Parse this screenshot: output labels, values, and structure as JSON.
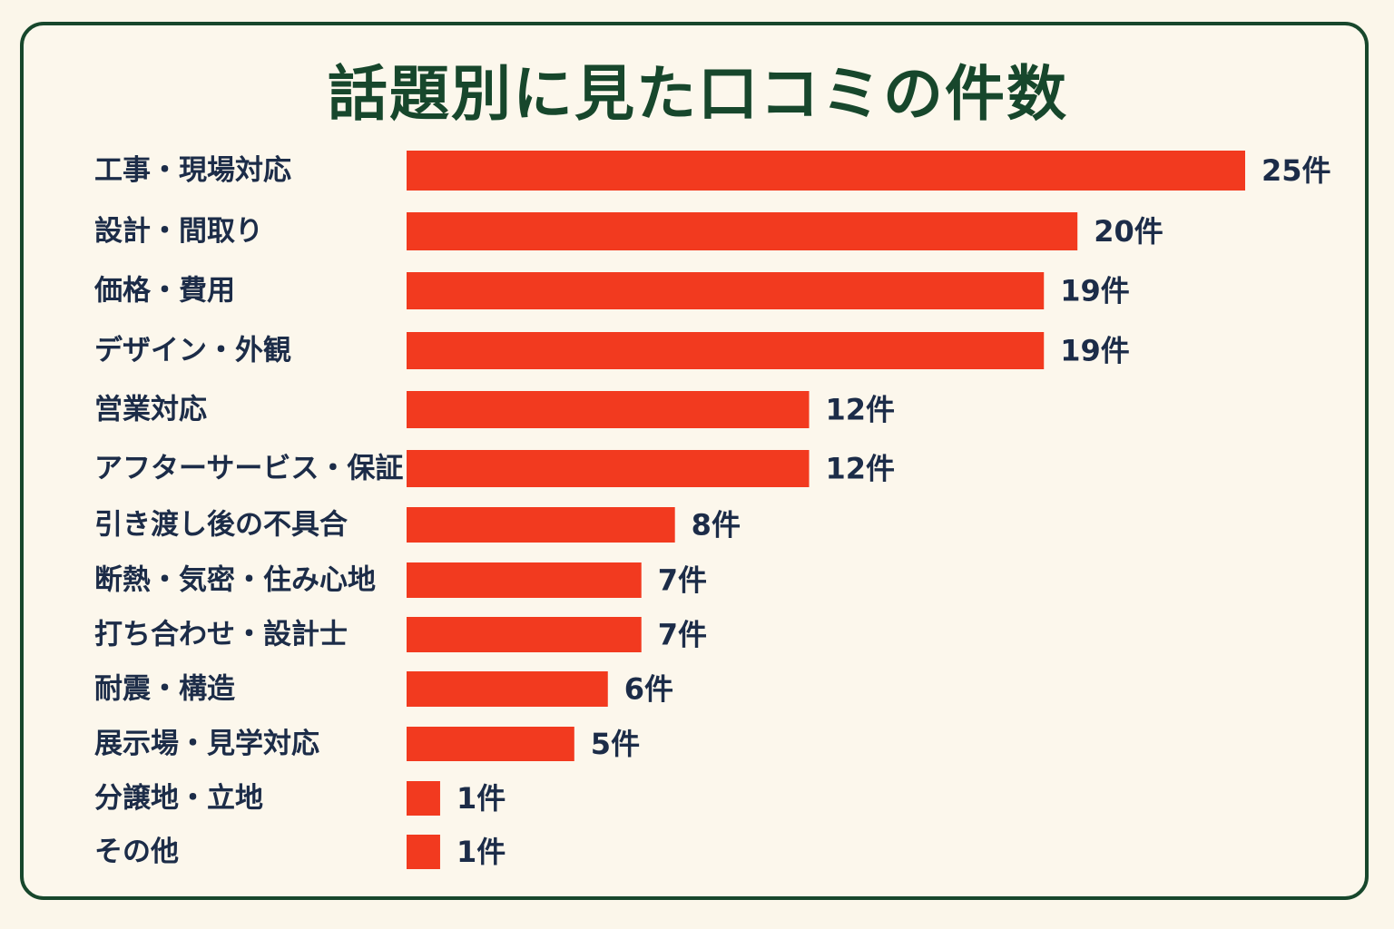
{
  "chart_data": {
    "type": "bar",
    "orientation": "horizontal",
    "title": "話題別に見た口コミの件数",
    "categories": [
      "工事・現場対応",
      "設計・間取り",
      "価格・費用",
      "デザイン・外観",
      "営業対応",
      "アフターサービス・保証",
      "引き渡し後の不具合",
      "断熱・気密・住み心地",
      "打ち合わせ・設計士",
      "耐震・構造",
      "展示場・見学対応",
      "分譲地・立地",
      "その他"
    ],
    "values": [
      25,
      20,
      19,
      19,
      12,
      12,
      8,
      7,
      7,
      6,
      5,
      1,
      1
    ],
    "value_labels": [
      "25件",
      "20件",
      "19件",
      "19件",
      "12件",
      "12件",
      "8件",
      "7件",
      "7件",
      "6件",
      "5件",
      "1件",
      "1件"
    ],
    "unit": "件",
    "bar_color": "#f23a1f",
    "xlim": [
      0,
      25
    ],
    "grid": false,
    "legend": "none"
  },
  "colors": {
    "title": "#17472c",
    "border": "#17472c",
    "background": "#fcf7ec",
    "labels": "#1c2c48"
  }
}
